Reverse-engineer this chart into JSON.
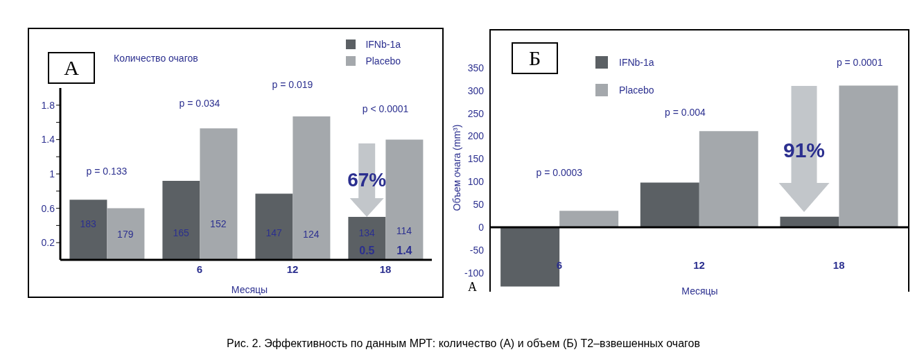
{
  "chart_data": [
    {
      "type": "bar",
      "ylabel": "Количество очагов",
      "xlabel": "Месяцы",
      "categories": [
        null,
        "6",
        "12",
        "18"
      ],
      "series": [
        {
          "name": "IFNb-1a",
          "color": "#5b6064",
          "values": [
            0.7,
            0.92,
            0.77,
            0.5
          ],
          "value_labels": [
            null,
            null,
            null,
            "0.5"
          ]
        },
        {
          "name": "Placebo",
          "color": "#a4a8ac",
          "values": [
            0.6,
            1.53,
            1.67,
            1.4
          ],
          "value_labels": [
            null,
            null,
            null,
            "1.4"
          ]
        }
      ],
      "ylim": [
        0,
        2
      ],
      "yticks": [
        0.2,
        {
          "value": 0.4,
          "label": null
        },
        0.6,
        {
          "value": 0.8,
          "label": null
        },
        1.0,
        {
          "value": 1.2,
          "label": null
        },
        1.4,
        {
          "value": 1.6,
          "label": null
        },
        1.8
      ],
      "legend": "top right",
      "annotations": [
        "А",
        "p = 0.133",
        "p = 0.034",
        "p = 0.019",
        "p < 0.0001",
        "67%",
        "183",
        "179",
        "165",
        "152",
        "147",
        "124",
        "134",
        "114",
        "Рис. 2. Эффективность по данным МРТ: количество (А) и объем (Б) Т2–взвешенных очагов"
      ]
    },
    {
      "type": "bar",
      "ylabel": "Объем очага (mm³)",
      "xlabel": "Месяцы",
      "categories": [
        "6",
        "12",
        "18"
      ],
      "series": [
        {
          "name": "IFNb-1a",
          "color": "#5b6064",
          "values": [
            -130,
            98,
            23
          ]
        },
        {
          "name": "Placebo",
          "color": "#a4a8ac",
          "values": [
            36,
            211,
            311
          ]
        }
      ],
      "ylim": [
        -140,
        400
      ],
      "yticks": [
        -100,
        -50,
        0,
        50,
        100,
        150,
        200,
        250,
        300,
        350
      ],
      "legend": "top",
      "annotations": [
        "Б",
        "p = 0.0003",
        "p = 0.004",
        "p = 0.0001",
        "91%",
        "А"
      ]
    }
  ]
}
